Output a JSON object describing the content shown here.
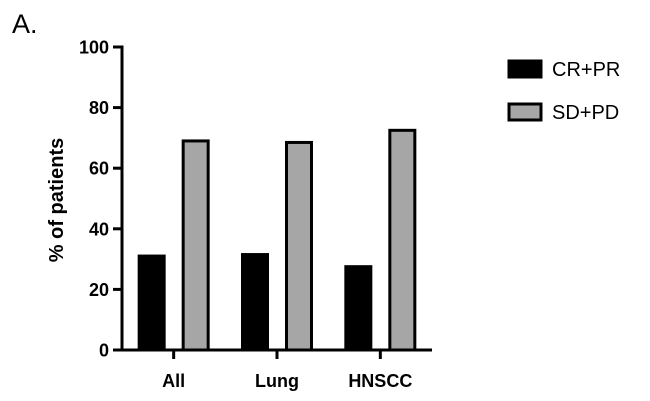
{
  "panel_label": "A.",
  "chart_data": {
    "type": "bar",
    "title": "",
    "xlabel": "",
    "ylabel": "% of patients",
    "categories": [
      "All",
      "Lung",
      "HNSCC"
    ],
    "series": [
      {
        "name": "CR+PR",
        "values": [
          31,
          31.5,
          27.5
        ],
        "color": "#000000"
      },
      {
        "name": "SD+PD",
        "values": [
          69,
          68.5,
          72.5
        ],
        "color": "#a6a6a6"
      }
    ],
    "ylim": [
      0,
      100
    ],
    "yticks": [
      0,
      20,
      40,
      60,
      80,
      100
    ],
    "grid": false,
    "legend_position": "top-right"
  }
}
